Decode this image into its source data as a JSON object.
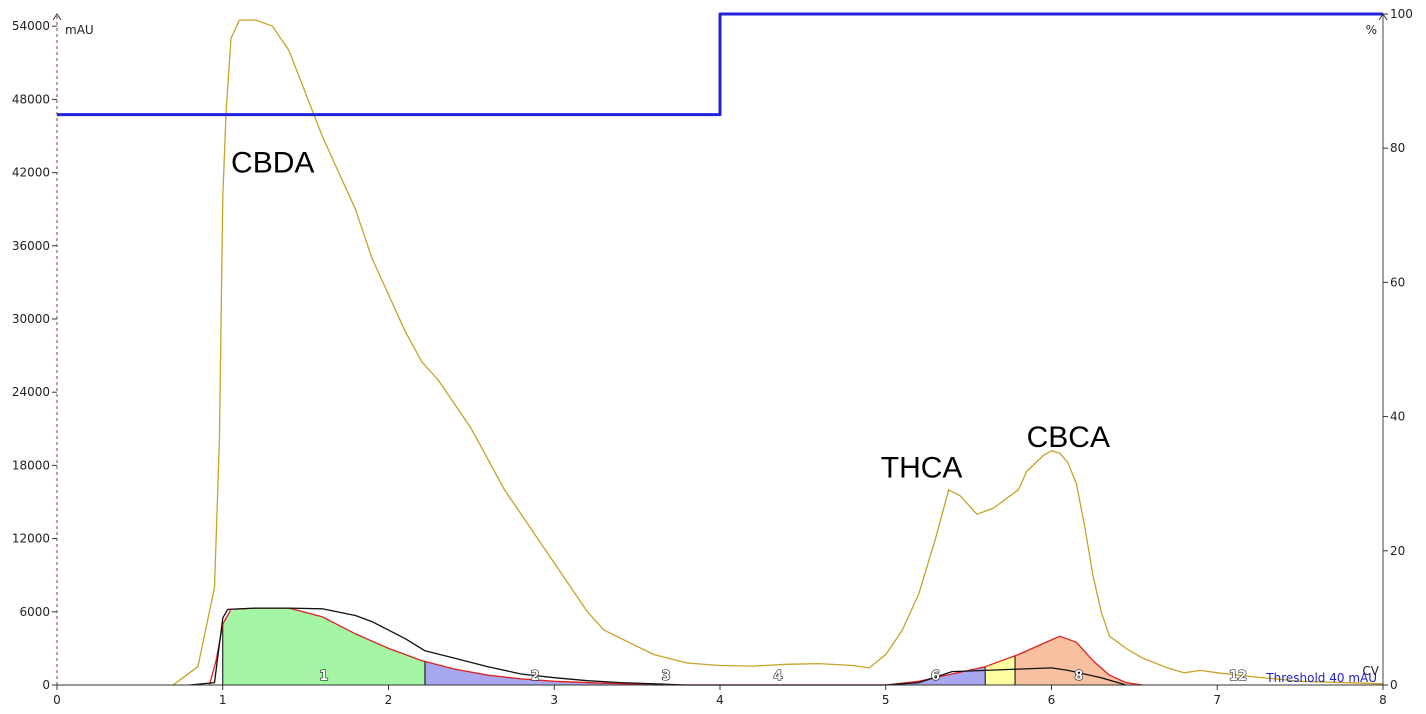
{
  "chart_data": {
    "type": "line",
    "x_axis": {
      "label": "CV",
      "range": [
        0,
        8
      ],
      "ticks": [
        "0",
        "1",
        "2",
        "3",
        "4",
        "5",
        "6",
        "7",
        "8"
      ]
    },
    "y_axis_left": {
      "unit": "mAU",
      "range": [
        0,
        55000
      ],
      "ticks": [
        "0",
        "6000",
        "12000",
        "18000",
        "24000",
        "30000",
        "36000",
        "42000",
        "48000",
        "54000"
      ]
    },
    "y_axis_right": {
      "unit": "%",
      "range": [
        0,
        100
      ],
      "ticks": [
        "0",
        "20",
        "40",
        "60",
        "80",
        "100"
      ]
    },
    "series": [
      {
        "color": "#c9a227",
        "points": [
          [
            0.7,
            0
          ],
          [
            0.85,
            1500
          ],
          [
            0.95,
            8000
          ],
          [
            0.98,
            20000
          ],
          [
            1.0,
            40000
          ],
          [
            1.02,
            47000
          ],
          [
            1.05,
            53000
          ],
          [
            1.1,
            54500
          ],
          [
            1.2,
            54500
          ],
          [
            1.3,
            54000
          ],
          [
            1.4,
            52000
          ],
          [
            1.6,
            45000
          ],
          [
            1.7,
            42000
          ],
          [
            1.8,
            39000
          ],
          [
            1.9,
            35000
          ],
          [
            2.0,
            32000
          ],
          [
            2.1,
            29000
          ],
          [
            2.2,
            26500
          ],
          [
            2.3,
            25000
          ],
          [
            2.4,
            23000
          ],
          [
            2.5,
            21000
          ],
          [
            2.6,
            18500
          ],
          [
            2.7,
            16000
          ],
          [
            2.8,
            14000
          ],
          [
            2.9,
            12000
          ],
          [
            3.0,
            10000
          ],
          [
            3.1,
            8000
          ],
          [
            3.2,
            6000
          ],
          [
            3.3,
            4500
          ],
          [
            3.45,
            3500
          ],
          [
            3.6,
            2500
          ],
          [
            3.8,
            1800
          ],
          [
            4.0,
            1600
          ],
          [
            4.2,
            1550
          ],
          [
            4.4,
            1700
          ],
          [
            4.6,
            1750
          ],
          [
            4.8,
            1600
          ],
          [
            4.9,
            1400
          ],
          [
            5.0,
            2500
          ],
          [
            5.1,
            4500
          ],
          [
            5.2,
            7500
          ],
          [
            5.3,
            12000
          ],
          [
            5.38,
            16000
          ],
          [
            5.45,
            15500
          ],
          [
            5.55,
            14000
          ],
          [
            5.65,
            14500
          ],
          [
            5.75,
            15500
          ],
          [
            5.8,
            16000
          ],
          [
            5.85,
            17500
          ],
          [
            5.95,
            18800
          ],
          [
            6.0,
            19200
          ],
          [
            6.05,
            19000
          ],
          [
            6.1,
            18200
          ],
          [
            6.15,
            16500
          ],
          [
            6.2,
            13000
          ],
          [
            6.25,
            9000
          ],
          [
            6.3,
            6000
          ],
          [
            6.35,
            4000
          ],
          [
            6.45,
            3000
          ],
          [
            6.55,
            2200
          ],
          [
            6.7,
            1400
          ],
          [
            6.8,
            1000
          ],
          [
            6.9,
            1200
          ],
          [
            7.0,
            1000
          ],
          [
            7.2,
            700
          ],
          [
            7.5,
            300
          ],
          [
            8.0,
            100
          ]
        ]
      },
      {
        "color": "#2222dd",
        "axis": "right",
        "points": [
          [
            0,
            85
          ],
          [
            4,
            85
          ],
          [
            4,
            100
          ],
          [
            8,
            100
          ]
        ]
      },
      {
        "color": "#e02020",
        "points": [
          [
            0.92,
            0
          ],
          [
            0.96,
            2000
          ],
          [
            1.0,
            5000
          ],
          [
            1.05,
            6200
          ],
          [
            1.2,
            6300
          ],
          [
            1.4,
            6300
          ],
          [
            1.6,
            5600
          ],
          [
            1.8,
            4200
          ],
          [
            2.0,
            3000
          ],
          [
            2.2,
            2000
          ],
          [
            2.4,
            1300
          ],
          [
            2.6,
            800
          ],
          [
            2.8,
            500
          ],
          [
            3.0,
            300
          ],
          [
            3.3,
            150
          ],
          [
            3.5,
            80
          ],
          [
            3.6,
            0
          ],
          [
            5.0,
            0
          ],
          [
            5.2,
            300
          ],
          [
            5.4,
            900
          ],
          [
            5.6,
            1500
          ],
          [
            5.8,
            2500
          ],
          [
            6.0,
            3700
          ],
          [
            6.05,
            4000
          ],
          [
            6.15,
            3500
          ],
          [
            6.25,
            2000
          ],
          [
            6.35,
            800
          ],
          [
            6.45,
            200
          ],
          [
            6.55,
            0
          ]
        ]
      },
      {
        "color": "#111111",
        "points": [
          [
            0.8,
            0
          ],
          [
            0.95,
            200
          ],
          [
            1.0,
            5500
          ],
          [
            1.03,
            6200
          ],
          [
            1.2,
            6300
          ],
          [
            1.4,
            6300
          ],
          [
            1.6,
            6250
          ],
          [
            1.8,
            5700
          ],
          [
            1.9,
            5200
          ],
          [
            2.0,
            4500
          ],
          [
            2.1,
            3800
          ],
          [
            2.22,
            2800
          ],
          [
            2.4,
            2200
          ],
          [
            2.6,
            1500
          ],
          [
            2.8,
            900
          ],
          [
            3.0,
            600
          ],
          [
            3.2,
            350
          ],
          [
            3.4,
            200
          ],
          [
            3.6,
            100
          ],
          [
            3.8,
            0
          ],
          [
            5.0,
            0
          ],
          [
            5.2,
            200
          ],
          [
            5.4,
            1100
          ],
          [
            5.6,
            1200
          ],
          [
            5.8,
            1300
          ],
          [
            6.0,
            1400
          ],
          [
            6.1,
            1200
          ],
          [
            6.3,
            600
          ],
          [
            6.45,
            0
          ]
        ]
      }
    ],
    "fractions": [
      {
        "label": "1",
        "x0": 1.0,
        "x1": 2.22,
        "color": "#a4f5a4"
      },
      {
        "label": "2",
        "x0": 2.22,
        "x1": 3.55,
        "color": "#a8a8f0"
      },
      {
        "label": "3",
        "x0": 3.55,
        "x1": 3.8,
        "color": "#d0d0d0"
      },
      {
        "label": "4",
        "x0": 3.8,
        "x1": 4.9,
        "color": "#ffffff"
      },
      {
        "label": "6",
        "x0": 5.0,
        "x1": 5.6,
        "color": "#a8a8f0"
      },
      {
        "label": "",
        "x0": 5.6,
        "x1": 5.78,
        "color": "#ffffa0"
      },
      {
        "label": "8",
        "x0": 5.78,
        "x1": 6.55,
        "color": "#f8c0a0"
      },
      {
        "label": "12",
        "x0": 7.0,
        "x1": 7.25,
        "color": "#ffffff"
      }
    ],
    "fraction_fill_source": "red",
    "annotations": [
      {
        "text": "CBDA",
        "x": 1.05,
        "y": 42000
      },
      {
        "text": "THCA",
        "x": 4.97,
        "y": 17000
      },
      {
        "text": "CBCA",
        "x": 5.85,
        "y": 19500
      }
    ],
    "threshold_label": "Threshold 40 mAU"
  }
}
